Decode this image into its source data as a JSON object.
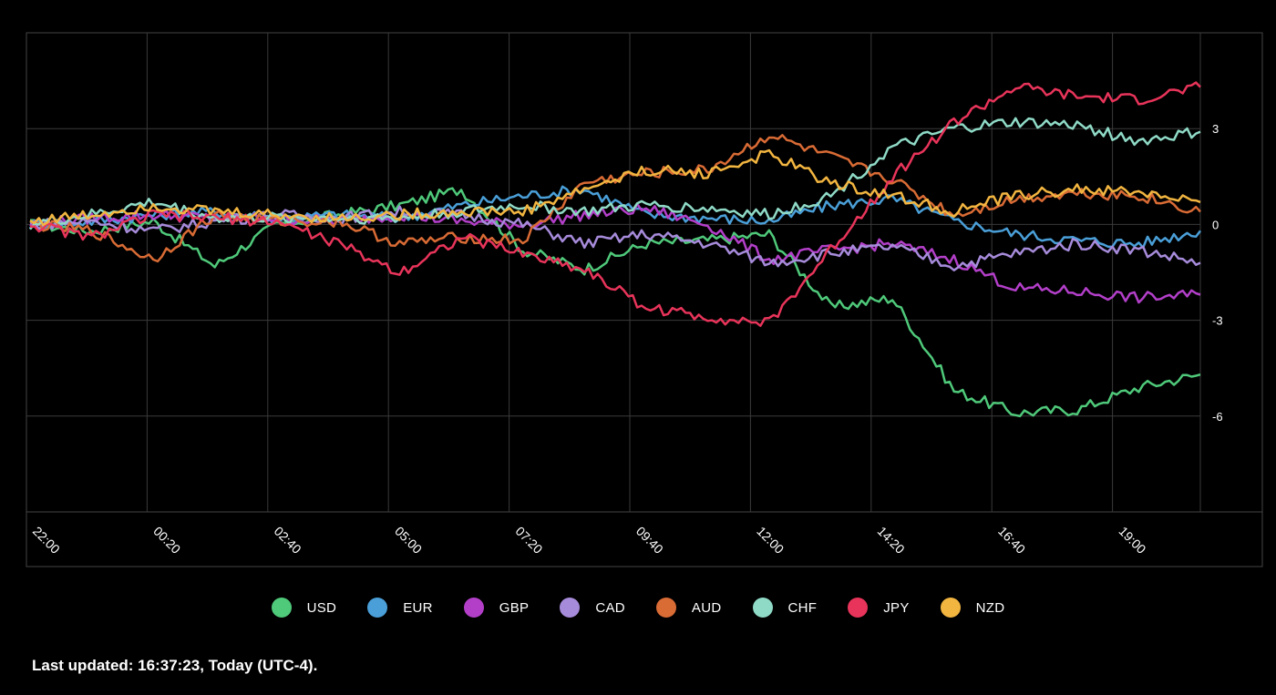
{
  "chart_data": {
    "type": "line",
    "title": "",
    "xlabel": "",
    "ylabel": "",
    "x_ticks": [
      "22:00",
      "00:20",
      "02:40",
      "05:00",
      "07:20",
      "09:40",
      "12:00",
      "14:20",
      "16:40",
      "19:00"
    ],
    "y_ticks": [
      3,
      0,
      -3,
      -6
    ],
    "y_tick_labels": [
      "3",
      "0",
      "-3",
      "-6"
    ],
    "ylim": [
      -9,
      6
    ],
    "grid": true,
    "legend_position": "bottom",
    "x": [
      "22:00",
      "23:10",
      "00:20",
      "01:30",
      "02:40",
      "03:50",
      "05:00",
      "06:10",
      "07:20",
      "08:30",
      "09:40",
      "10:50",
      "12:00",
      "13:10",
      "14:20",
      "15:30",
      "16:40",
      "17:50",
      "19:00",
      "20:10"
    ],
    "series": [
      {
        "name": "USD",
        "color": "#4fc97a",
        "values": [
          0.0,
          -0.2,
          0.1,
          -1.3,
          0.0,
          0.3,
          0.6,
          1.1,
          -0.8,
          -1.4,
          -0.6,
          -0.5,
          -0.3,
          -2.6,
          -2.3,
          -5.2,
          -5.9,
          -5.8,
          -5.1,
          -4.7
        ]
      },
      {
        "name": "EUR",
        "color": "#4a9fd8",
        "values": [
          0.0,
          0.1,
          0.3,
          0.4,
          0.2,
          0.3,
          0.2,
          0.6,
          0.9,
          1.1,
          0.3,
          0.2,
          0.1,
          0.6,
          0.8,
          0.1,
          -0.3,
          -0.5,
          -0.6,
          -0.2
        ]
      },
      {
        "name": "GBP",
        "color": "#b33fc9",
        "values": [
          0.0,
          0.2,
          0.3,
          0.2,
          0.2,
          0.1,
          0.3,
          0.1,
          0.0,
          0.3,
          0.5,
          0.0,
          -1.1,
          -0.8,
          -0.6,
          -1.1,
          -2.0,
          -2.1,
          -2.3,
          -2.2
        ]
      },
      {
        "name": "CAD",
        "color": "#a78bdb",
        "values": [
          0.0,
          0.1,
          -0.2,
          0.1,
          0.3,
          0.2,
          0.4,
          0.3,
          0.0,
          -0.6,
          -0.3,
          -0.6,
          -1.2,
          -0.9,
          -0.7,
          -1.3,
          -0.9,
          -0.6,
          -0.8,
          -1.2
        ]
      },
      {
        "name": "AUD",
        "color": "#d96b35",
        "values": [
          0.0,
          -0.2,
          -1.1,
          0.3,
          0.1,
          0.1,
          -0.6,
          -0.4,
          -0.5,
          1.3,
          1.6,
          1.7,
          2.8,
          2.1,
          1.4,
          0.3,
          0.8,
          1.0,
          0.9,
          0.4
        ]
      },
      {
        "name": "CHF",
        "color": "#8fdac6",
        "values": [
          0.0,
          0.3,
          0.7,
          0.2,
          0.2,
          0.2,
          0.2,
          0.4,
          0.6,
          0.4,
          0.6,
          0.5,
          0.3,
          0.9,
          2.4,
          3.0,
          3.2,
          3.1,
          2.6,
          2.9
        ]
      },
      {
        "name": "JPY",
        "color": "#e8345a",
        "values": [
          0.0,
          -0.4,
          0.3,
          0.2,
          0.1,
          -0.6,
          -1.5,
          -0.4,
          -0.9,
          -1.4,
          -2.6,
          -2.9,
          -3.1,
          -0.8,
          1.5,
          3.2,
          4.3,
          4.0,
          3.9,
          4.3
        ]
      },
      {
        "name": "NZD",
        "color": "#f2b540",
        "values": [
          0.1,
          0.3,
          0.6,
          0.4,
          0.3,
          0.2,
          0.3,
          0.4,
          0.4,
          1.1,
          1.7,
          1.6,
          2.2,
          1.3,
          0.9,
          0.4,
          0.9,
          1.1,
          1.0,
          0.7
        ]
      }
    ]
  },
  "footer": {
    "text": "Last updated: 16:37:23, Today (UTC-4)."
  }
}
